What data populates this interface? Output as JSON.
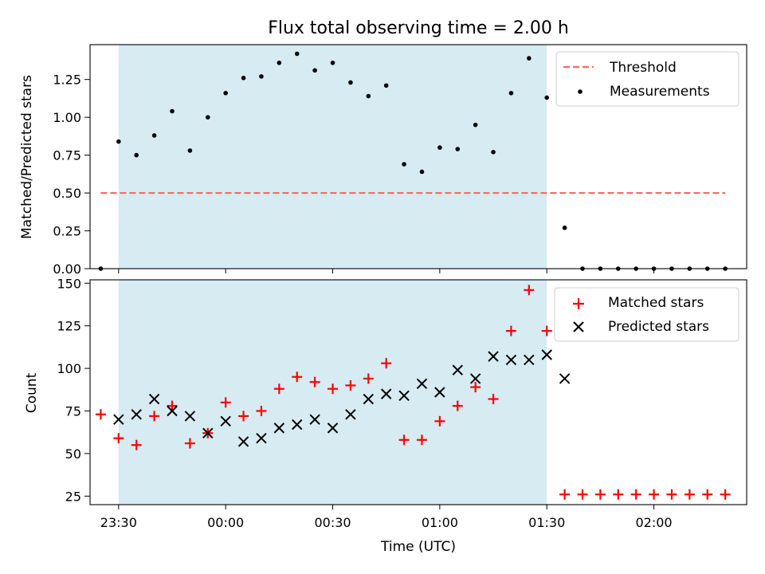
{
  "chart_data": [
    {
      "type": "scatter",
      "title": "Flux total observing time = 2.00 h",
      "xlabel": "",
      "ylabel": "Matched/Predicted stars",
      "xlim": [
        "23:22",
        "02:26"
      ],
      "ylim": [
        0,
        1.48
      ],
      "yticks": [
        "0.00",
        "0.25",
        "0.50",
        "0.75",
        "1.00",
        "1.25"
      ],
      "grid": false,
      "legend_position": "top-right",
      "highlight": {
        "from": "23:30",
        "to": "01:30",
        "color": "#add8e6"
      },
      "threshold": {
        "name": "Threshold",
        "value": 0.5,
        "from": "23:25",
        "to": "02:20",
        "color": "#ff6666"
      },
      "series": [
        {
          "name": "Measurements",
          "marker": "dot",
          "color": "#000000",
          "points": [
            [
              "23:25",
              0.0
            ],
            [
              "23:30",
              0.84
            ],
            [
              "23:35",
              0.75
            ],
            [
              "23:40",
              0.88
            ],
            [
              "23:45",
              1.04
            ],
            [
              "23:50",
              0.78
            ],
            [
              "23:55",
              1.0
            ],
            [
              "00:00",
              1.16
            ],
            [
              "00:05",
              1.26
            ],
            [
              "00:10",
              1.27
            ],
            [
              "00:15",
              1.36
            ],
            [
              "00:20",
              1.42
            ],
            [
              "00:25",
              1.31
            ],
            [
              "00:30",
              1.36
            ],
            [
              "00:35",
              1.23
            ],
            [
              "00:40",
              1.14
            ],
            [
              "00:45",
              1.21
            ],
            [
              "00:50",
              0.69
            ],
            [
              "00:55",
              0.64
            ],
            [
              "01:00",
              0.8
            ],
            [
              "01:05",
              0.79
            ],
            [
              "01:10",
              0.95
            ],
            [
              "01:15",
              0.77
            ],
            [
              "01:20",
              1.16
            ],
            [
              "01:25",
              1.39
            ],
            [
              "01:30",
              1.13
            ],
            [
              "01:35",
              0.27
            ],
            [
              "01:40",
              0.0
            ],
            [
              "01:45",
              0.0
            ],
            [
              "01:50",
              0.0
            ],
            [
              "01:55",
              0.0
            ],
            [
              "02:00",
              0.0
            ],
            [
              "02:05",
              0.0
            ],
            [
              "02:10",
              0.0
            ],
            [
              "02:15",
              0.0
            ],
            [
              "02:20",
              0.0
            ]
          ]
        }
      ]
    },
    {
      "type": "scatter",
      "title": "",
      "xlabel": "Time (UTC)",
      "ylabel": "Count",
      "xlim": [
        "23:22",
        "02:26"
      ],
      "ylim": [
        20,
        152
      ],
      "yticks": [
        "25",
        "50",
        "75",
        "100",
        "125",
        "150"
      ],
      "xticks": [
        "23:30",
        "00:00",
        "00:30",
        "01:00",
        "01:30",
        "02:00"
      ],
      "grid": false,
      "legend_position": "top-right",
      "highlight": {
        "from": "23:30",
        "to": "01:30",
        "color": "#add8e6"
      },
      "series": [
        {
          "name": "Matched stars",
          "marker": "plus",
          "color": "#ff0000",
          "points": [
            [
              "23:25",
              73
            ],
            [
              "23:30",
              59
            ],
            [
              "23:35",
              55
            ],
            [
              "23:40",
              72
            ],
            [
              "23:45",
              78
            ],
            [
              "23:50",
              56
            ],
            [
              "23:55",
              62
            ],
            [
              "00:00",
              80
            ],
            [
              "00:05",
              72
            ],
            [
              "00:10",
              75
            ],
            [
              "00:15",
              88
            ],
            [
              "00:20",
              95
            ],
            [
              "00:25",
              92
            ],
            [
              "00:30",
              88
            ],
            [
              "00:35",
              90
            ],
            [
              "00:40",
              94
            ],
            [
              "00:45",
              103
            ],
            [
              "00:50",
              58
            ],
            [
              "00:55",
              58
            ],
            [
              "01:00",
              69
            ],
            [
              "01:05",
              78
            ],
            [
              "01:10",
              89
            ],
            [
              "01:15",
              82
            ],
            [
              "01:20",
              122
            ],
            [
              "01:25",
              146
            ],
            [
              "01:30",
              122
            ],
            [
              "01:35",
              26
            ],
            [
              "01:40",
              26
            ],
            [
              "01:45",
              26
            ],
            [
              "01:50",
              26
            ],
            [
              "01:55",
              26
            ],
            [
              "02:00",
              26
            ],
            [
              "02:05",
              26
            ],
            [
              "02:10",
              26
            ],
            [
              "02:15",
              26
            ],
            [
              "02:20",
              26
            ]
          ]
        },
        {
          "name": "Predicted stars",
          "marker": "x",
          "color": "#000000",
          "points": [
            [
              "23:30",
              70
            ],
            [
              "23:35",
              73
            ],
            [
              "23:40",
              82
            ],
            [
              "23:45",
              75
            ],
            [
              "23:50",
              72
            ],
            [
              "23:55",
              62
            ],
            [
              "00:00",
              69
            ],
            [
              "00:05",
              57
            ],
            [
              "00:10",
              59
            ],
            [
              "00:15",
              65
            ],
            [
              "00:20",
              67
            ],
            [
              "00:25",
              70
            ],
            [
              "00:30",
              65
            ],
            [
              "00:35",
              73
            ],
            [
              "00:40",
              82
            ],
            [
              "00:45",
              85
            ],
            [
              "00:50",
              84
            ],
            [
              "00:55",
              91
            ],
            [
              "01:00",
              86
            ],
            [
              "01:05",
              99
            ],
            [
              "01:10",
              94
            ],
            [
              "01:15",
              107
            ],
            [
              "01:20",
              105
            ],
            [
              "01:25",
              105
            ],
            [
              "01:30",
              108
            ],
            [
              "01:35",
              94
            ]
          ]
        }
      ]
    }
  ]
}
